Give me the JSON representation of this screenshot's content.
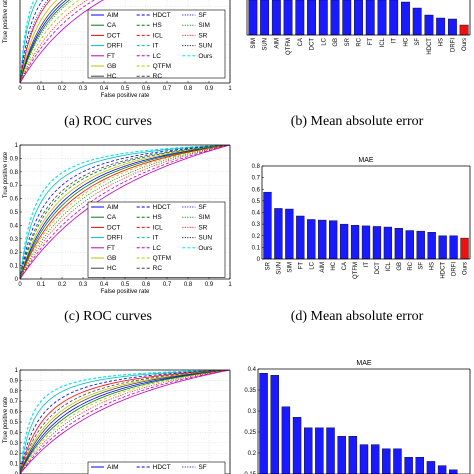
{
  "captions": {
    "a": "(a) ROC curves",
    "b": "(b) Mean absolute error",
    "c": "(c) ROC curves",
    "d": "(d) Mean absolute error"
  },
  "method_styles": [
    {
      "name": "AIM",
      "color": "#0000ff",
      "dash": ""
    },
    {
      "name": "CA",
      "color": "#008000",
      "dash": ""
    },
    {
      "name": "DCT",
      "color": "#ff0000",
      "dash": ""
    },
    {
      "name": "DRFI",
      "color": "#00bfbf",
      "dash": ""
    },
    {
      "name": "FT",
      "color": "#bf00bf",
      "dash": ""
    },
    {
      "name": "GB",
      "color": "#bfbf00",
      "dash": ""
    },
    {
      "name": "HC",
      "color": "#404040",
      "dash": ""
    },
    {
      "name": "HDCT",
      "color": "#0000ff",
      "dash": "3,2"
    },
    {
      "name": "HS",
      "color": "#008000",
      "dash": "3,2"
    },
    {
      "name": "ICL",
      "color": "#ff0000",
      "dash": "3,2"
    },
    {
      "name": "IT",
      "color": "#00bfbf",
      "dash": "3,2"
    },
    {
      "name": "LC",
      "color": "#bf00bf",
      "dash": "3,2"
    },
    {
      "name": "QTFM",
      "color": "#bfbf00",
      "dash": "3,2"
    },
    {
      "name": "RC",
      "color": "#404040",
      "dash": "3,2"
    },
    {
      "name": "SF",
      "color": "#0000ff",
      "dash": "1,1.5"
    },
    {
      "name": "SIM",
      "color": "#008000",
      "dash": "1,1.5"
    },
    {
      "name": "SR",
      "color": "#ff0000",
      "dash": "1,1.5"
    },
    {
      "name": "SUN",
      "color": "#000000",
      "dash": "1,1.5"
    },
    {
      "name": "Ours",
      "color": "#00e5ee",
      "dash": "3,2"
    }
  ],
  "chart_data": [
    {
      "id": "roc_top",
      "type": "line",
      "xlabel": "False positive rate",
      "ylabel": "True positive rate",
      "xlim": [
        0,
        1
      ],
      "ylim": [
        0,
        1
      ],
      "xticks": [
        "0",
        "0.1",
        "0.2",
        "0.3",
        "0.4",
        "0.5",
        "0.6",
        "0.7",
        "0.8",
        "0.9",
        "1"
      ],
      "yticks": [],
      "legend": [
        "AIM",
        "CA",
        "DCT",
        "DRFI",
        "FT",
        "GB",
        "HC",
        "HDCT",
        "HS",
        "ICL",
        "IT",
        "LC",
        "QTFM",
        "RC",
        "SF",
        "SIM",
        "SR",
        "SUN",
        "Ours"
      ],
      "legend_position": "lower-right",
      "series": [
        {
          "name": "DRFI",
          "k": 0.05
        },
        {
          "name": "Ours",
          "k": 0.04
        },
        {
          "name": "HDCT",
          "k": 0.07
        },
        {
          "name": "SF",
          "k": 0.09
        },
        {
          "name": "DCT",
          "k": 0.1
        },
        {
          "name": "GB",
          "k": 0.13
        },
        {
          "name": "HC",
          "k": 0.16
        },
        {
          "name": "AIM",
          "k": 0.18
        },
        {
          "name": "CA",
          "k": 0.2
        },
        {
          "name": "SIM",
          "k": 0.22
        },
        {
          "name": "QTFM",
          "k": 0.27
        },
        {
          "name": "SR",
          "k": 0.34
        },
        {
          "name": "LC",
          "k": 0.42
        },
        {
          "name": "FT",
          "k": 0.55
        }
      ]
    },
    {
      "id": "mae_top",
      "type": "bar",
      "categories": [
        "SIM",
        "SUN",
        "AIM",
        "QTFM",
        "CA",
        "DCT",
        "LC",
        "GB",
        "SR",
        "RC",
        "FT",
        "ICL",
        "IT",
        "HC",
        "SF",
        "HDCT",
        "HS",
        "DRFI",
        "Ours"
      ],
      "values": [
        0.4,
        0.4,
        0.4,
        0.4,
        0.4,
        0.4,
        0.4,
        0.4,
        0.4,
        0.4,
        0.4,
        0.4,
        0.38,
        0.33,
        0.27,
        0.2,
        0.17,
        0.16,
        0.1
      ],
      "ylim": [
        0,
        0.4
      ],
      "highlight": "Ours"
    },
    {
      "id": "roc_mid",
      "type": "line",
      "xlabel": "False positive rate",
      "ylabel": "True positive rate",
      "xlim": [
        0,
        1
      ],
      "ylim": [
        0,
        1
      ],
      "xticks": [
        "0",
        "0.1",
        "0.2",
        "0.3",
        "0.4",
        "0.5",
        "0.6",
        "0.7",
        "0.8",
        "0.9",
        "1"
      ],
      "yticks": [
        "0",
        "0.1",
        "0.2",
        "0.3",
        "0.4",
        "0.5",
        "0.6",
        "0.7",
        "0.8",
        "0.9",
        "1"
      ],
      "legend": [
        "AIM",
        "CA",
        "DCT",
        "DRFI",
        "FT",
        "GB",
        "HC",
        "HDCT",
        "HS",
        "ICL",
        "IT",
        "LC",
        "QTFM",
        "RC",
        "SF",
        "SIM",
        "SR",
        "SUN",
        "Ours"
      ],
      "legend_position": "lower-right",
      "series": [
        {
          "name": "Ours",
          "k": 0.07
        },
        {
          "name": "DRFI",
          "k": 0.09
        },
        {
          "name": "HDCT",
          "k": 0.12
        },
        {
          "name": "RC",
          "k": 0.15
        },
        {
          "name": "HS",
          "k": 0.17
        },
        {
          "name": "GB",
          "k": 0.2
        },
        {
          "name": "AIM",
          "k": 0.23
        },
        {
          "name": "CA",
          "k": 0.26
        },
        {
          "name": "DCT",
          "k": 0.3
        },
        {
          "name": "QTFM",
          "k": 0.34
        },
        {
          "name": "SIM",
          "k": 0.4
        },
        {
          "name": "SR",
          "k": 0.48
        },
        {
          "name": "LC",
          "k": 0.6
        },
        {
          "name": "FT",
          "k": 0.75
        }
      ]
    },
    {
      "id": "mae_mid",
      "type": "bar",
      "title": "MAE",
      "categories": [
        "SR",
        "SUN",
        "SIM",
        "FT",
        "LC",
        "AIM",
        "HC",
        "CA",
        "QTFM",
        "IT",
        "DCT",
        "ICL",
        "GB",
        "RC",
        "SF",
        "HS",
        "HDCT",
        "DRFI",
        "Ours"
      ],
      "values": [
        0.575,
        0.435,
        0.43,
        0.37,
        0.34,
        0.335,
        0.33,
        0.3,
        0.29,
        0.285,
        0.28,
        0.275,
        0.265,
        0.245,
        0.24,
        0.23,
        0.2,
        0.2,
        0.18
      ],
      "ylim": [
        0,
        0.8
      ],
      "yticks": [
        "0",
        "0.1",
        "0.2",
        "0.3",
        "0.4",
        "0.5",
        "0.6",
        "0.7",
        "0.8"
      ],
      "highlight": "Ours"
    },
    {
      "id": "roc_bottom",
      "type": "line",
      "ylabel": "True positive rate",
      "xlim": [
        0,
        1
      ],
      "ylim": [
        0,
        1
      ],
      "yticks": [
        "0",
        "0.1",
        "0.2",
        "0.3",
        "0.4",
        "0.5",
        "0.6",
        "0.7",
        "0.8",
        "0.9",
        "1"
      ],
      "legend": [
        "AIM",
        "HDCT",
        "SF"
      ],
      "legend_position": "lower-right",
      "series": [
        {
          "name": "Ours",
          "k": 0.05
        },
        {
          "name": "DRFI",
          "k": 0.07
        },
        {
          "name": "HDCT",
          "k": 0.1
        },
        {
          "name": "DCT",
          "k": 0.13
        },
        {
          "name": "RC",
          "k": 0.16
        },
        {
          "name": "GB",
          "k": 0.19
        },
        {
          "name": "HC",
          "k": 0.22
        },
        {
          "name": "AIM",
          "k": 0.26
        },
        {
          "name": "CA",
          "k": 0.3
        },
        {
          "name": "QTFM",
          "k": 0.35
        },
        {
          "name": "SR",
          "k": 0.42
        },
        {
          "name": "LC",
          "k": 0.52
        },
        {
          "name": "FT",
          "k": 0.65
        }
      ]
    },
    {
      "id": "mae_bottom",
      "type": "bar",
      "title": "MAE",
      "values": [
        0.39,
        0.385,
        0.31,
        0.285,
        0.26,
        0.26,
        0.26,
        0.24,
        0.24,
        0.22,
        0.22,
        0.21,
        0.21,
        0.19,
        0.19,
        0.18,
        0.17,
        0.16,
        0.15
      ],
      "ylim": [
        0.15,
        0.4
      ],
      "yticks": [
        "0.4",
        "0.35",
        "0.3",
        "0.25",
        "0.2",
        "0.15"
      ],
      "highlight_index": 18
    }
  ]
}
